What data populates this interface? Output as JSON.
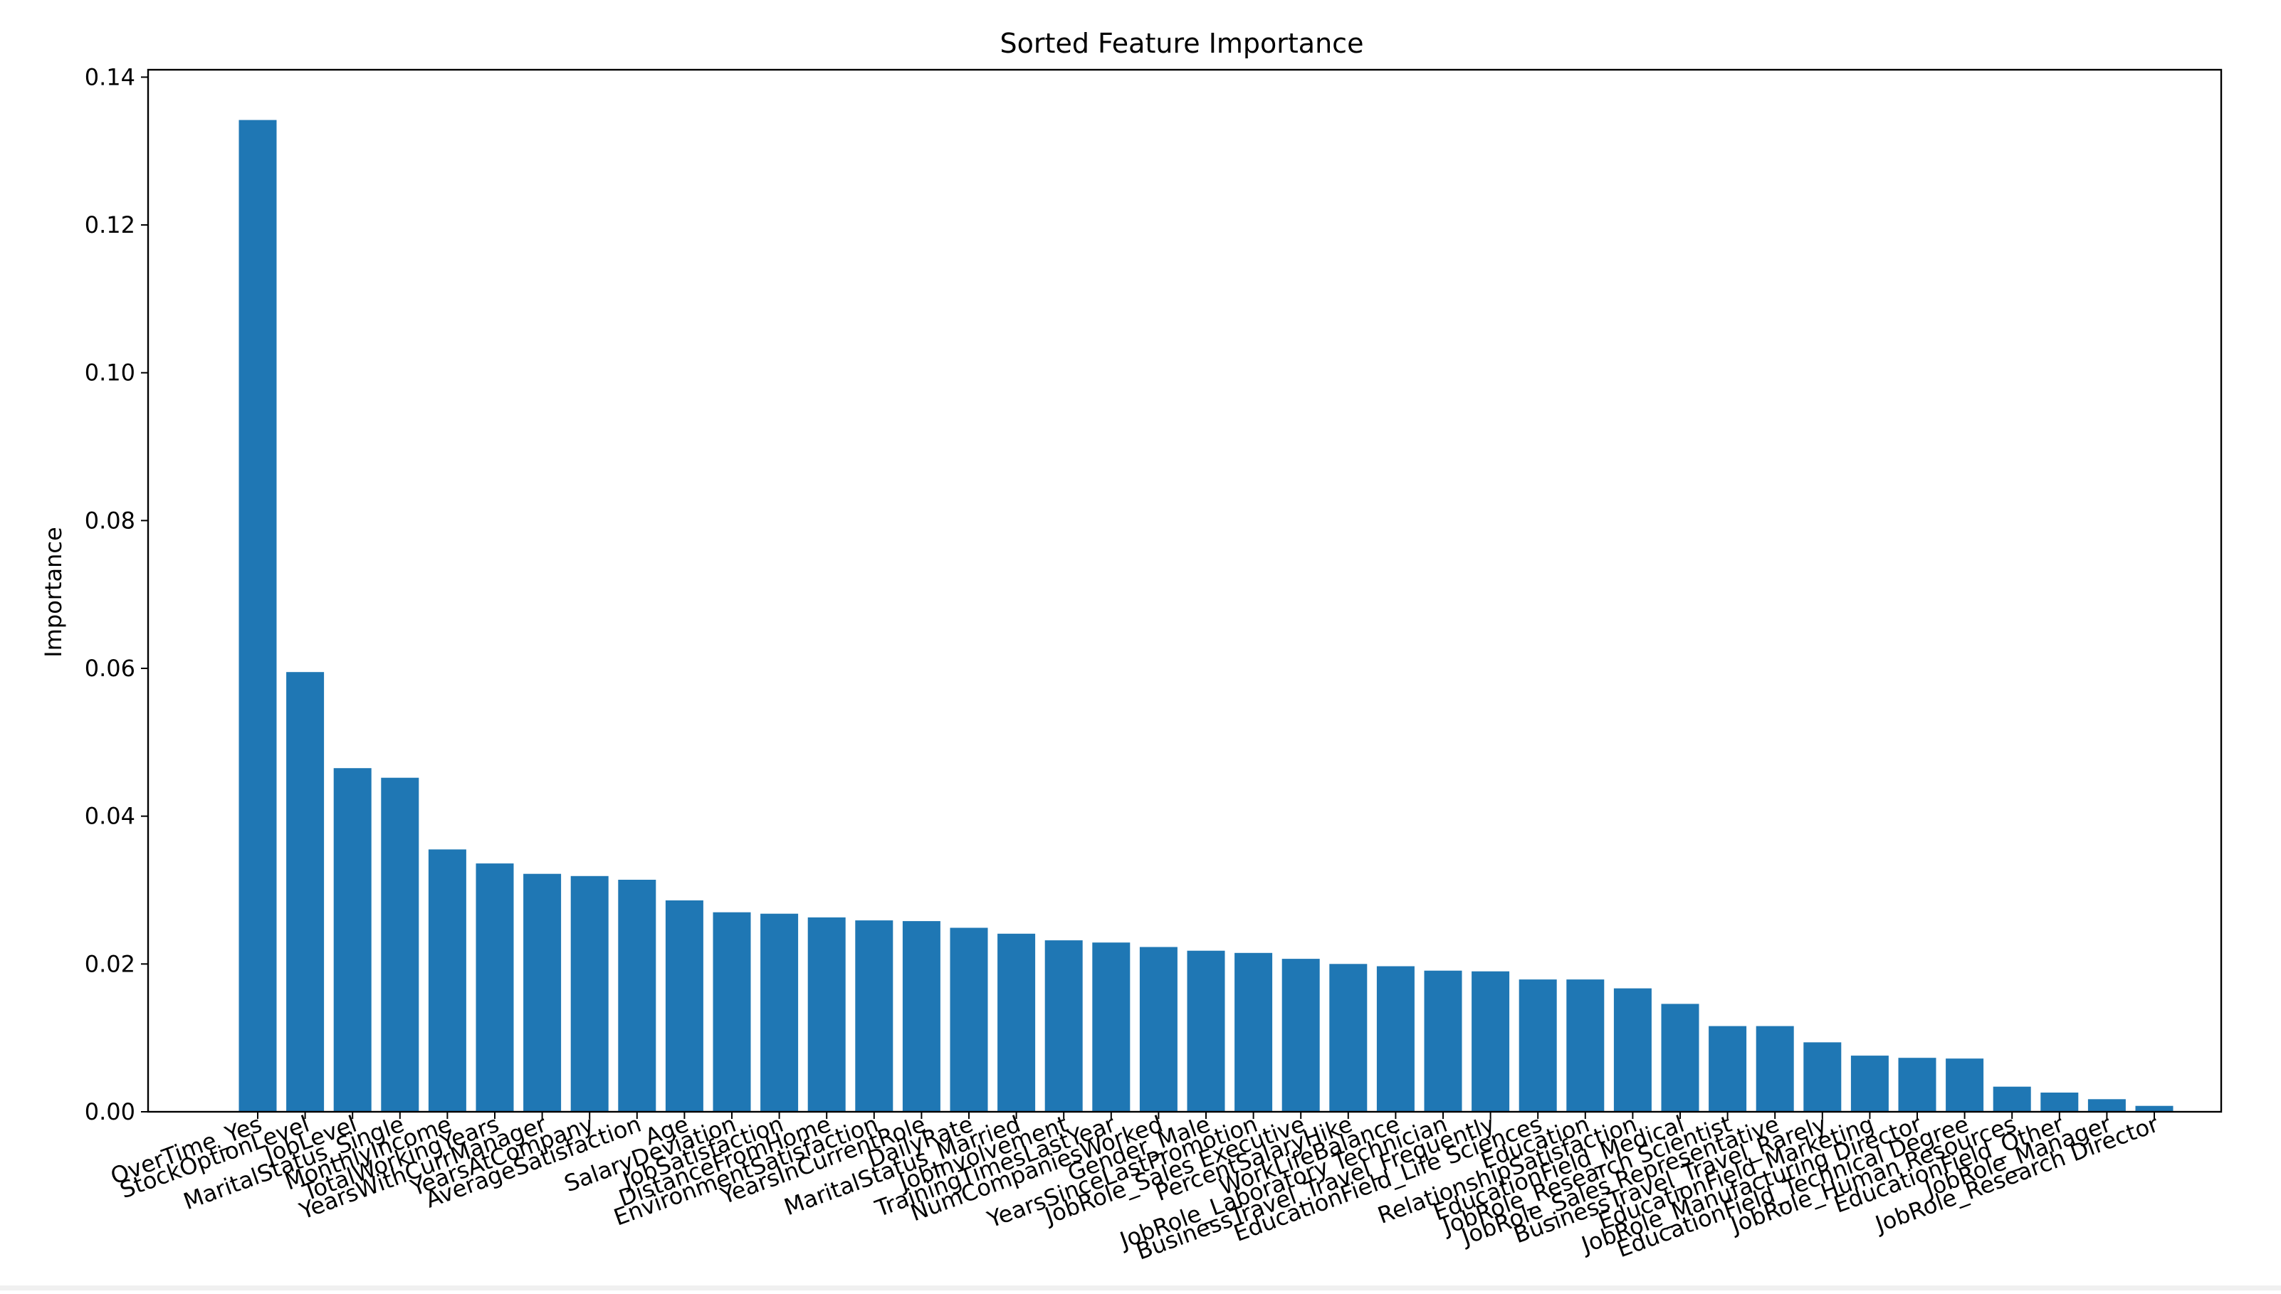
{
  "chart_data": {
    "type": "bar",
    "title": "Sorted Feature Importance",
    "xlabel": "",
    "ylabel": "Importance",
    "ylim": [
      0.0,
      0.141
    ],
    "yticks": [
      "0.00",
      "0.02",
      "0.04",
      "0.06",
      "0.08",
      "0.10",
      "0.12",
      "0.14"
    ],
    "grid": false,
    "bar_color": "#1f77b4",
    "categories": [
      "OverTime_Yes",
      "StockOptionLevel",
      "JobLevel",
      "MaritalStatus_Single",
      "MonthlyIncome",
      "TotalWorkingYears",
      "YearsWithCurrManager",
      "YearsAtCompany",
      "AverageSatisfaction",
      "Age",
      "SalaryDeviation",
      "JobSatisfaction",
      "DistanceFromHome",
      "EnvironmentSatisfaction",
      "YearsInCurrentRole",
      "DailyRate",
      "MaritalStatus_Married",
      "JobInvolvement",
      "TrainingTimesLastYear",
      "NumCompaniesWorked",
      "Gender_Male",
      "YearsSinceLastPromotion",
      "JobRole_Sales Executive",
      "PercentSalaryHike",
      "WorkLifeBalance",
      "JobRole_Laboratory Technician",
      "BusinessTravel_Travel_Frequently",
      "EducationField_Life Sciences",
      "Education",
      "RelationshipSatisfaction",
      "EducationField_Medical",
      "JobRole_Research Scientist",
      "JobRole_Sales Representative",
      "BusinessTravel_Travel_Rarely",
      "EducationField_Marketing",
      "JobRole_Manufacturing Director",
      "EducationField_Technical Degree",
      "JobRole_Human Resources",
      "EducationField_Other",
      "JobRole_Manager",
      "JobRole_Research Director"
    ],
    "values": [
      0.1342,
      0.0595,
      0.0465,
      0.0452,
      0.0355,
      0.0336,
      0.0322,
      0.0319,
      0.0314,
      0.0286,
      0.027,
      0.0268,
      0.0263,
      0.0259,
      0.0258,
      0.0249,
      0.0241,
      0.0232,
      0.0229,
      0.0223,
      0.0218,
      0.0215,
      0.0207,
      0.02,
      0.0197,
      0.0191,
      0.019,
      0.0179,
      0.0179,
      0.0167,
      0.0146,
      0.0116,
      0.0116,
      0.0094,
      0.0076,
      0.0073,
      0.0072,
      0.0034,
      0.0026,
      0.0017,
      0.0008
    ]
  }
}
